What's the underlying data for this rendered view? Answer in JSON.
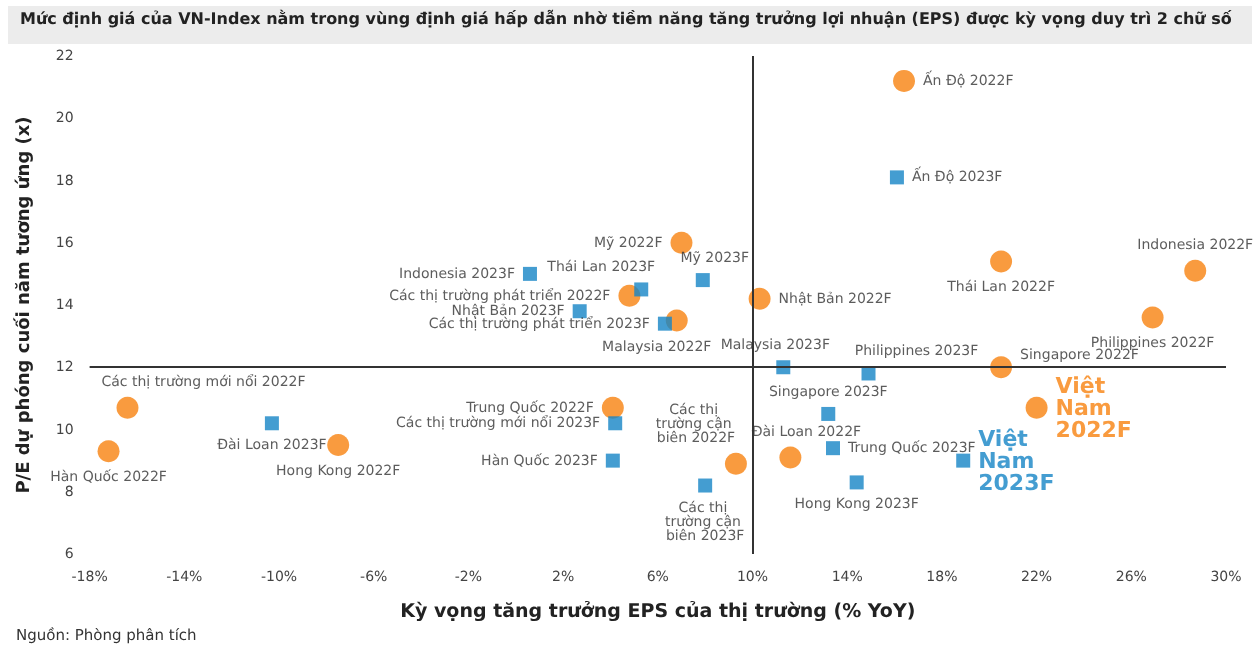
{
  "chart_data": {
    "type": "scatter",
    "title": "Mức định giá của VN-Index nằm trong vùng định giá hấp dẫn nhờ tiềm năng tăng trưởng lợi nhuận (EPS) được kỳ vọng duy trì 2 chữ số",
    "xlabel": "Kỳ vọng tăng trưởng EPS của thị trường (% YoY)",
    "ylabel": "P/E dự phóng cuối năm tương ứng (x)",
    "annotations": [
      "Nguồn: Phòng phân tích"
    ],
    "series": [
      {
        "color": "#f7820f",
        "marker": "circle",
        "x": [
          16.4,
          20.5,
          28.7,
          26.9,
          20.5,
          22.0,
          10.3,
          7.0,
          4.8,
          6.8,
          4.1,
          9.3,
          11.6,
          -16.4,
          -17.2,
          -7.5
        ],
        "values": [
          21.2,
          15.4,
          15.1,
          13.6,
          12.0,
          10.7,
          14.2,
          16.0,
          14.3,
          13.5,
          10.7,
          8.9,
          9.1,
          10.7,
          9.3,
          9.5
        ],
        "value_labels": [
          "Ấn Độ 2022F",
          "Thái Lan 2022F",
          "Indonesia 2022F",
          "Philippines 2022F",
          "Singapore 2022F",
          "Việt Nam 2022F",
          "Nhật Bản 2022F",
          "Mỹ 2022F",
          "Các thị trường phát triển 2022F",
          "Malaysia 2022F",
          "Trung Quốc 2022F",
          "Các thị trường cận biên 2022F",
          "Đài Loan 2022F",
          "Các thị trường mới nổi 2022F",
          "Hàn Quốc 2022F",
          "Hong Kong 2022F"
        ]
      },
      {
        "color": "#1585c6",
        "marker": "square",
        "x": [
          16.1,
          7.9,
          5.3,
          0.6,
          2.7,
          6.3,
          11.3,
          14.9,
          13.2,
          13.4,
          14.4,
          18.9,
          8.0,
          4.2,
          4.1,
          -10.3
        ],
        "values": [
          18.1,
          14.8,
          14.5,
          15.0,
          13.8,
          13.4,
          12.0,
          11.8,
          10.5,
          9.4,
          8.3,
          9.0,
          8.2,
          10.2,
          9.0,
          10.2
        ],
        "value_labels": [
          "Ấn Độ 2023F",
          "Mỹ 2023F",
          "Thái Lan 2023F",
          "Indonesia 2023F",
          "Nhật Bản 2023F",
          "Các thị trường phát triển 2023F",
          "Malaysia 2023F",
          "Philippines 2023F",
          "Singapore 2023F",
          "Trung Quốc 2023F",
          "Hong Kong 2023F",
          "Việt Nam 2023F",
          "Các thị trường cận biên 2023F",
          "Các thị trường mới nổi 2023F",
          "Hàn Quốc 2023F",
          "Đài Loan 2023F"
        ]
      }
    ],
    "xlim": [
      -18,
      30
    ],
    "xticks": [
      {
        "value": -18,
        "label": "-18%"
      },
      {
        "value": -14,
        "label": "-14%"
      },
      {
        "value": -10,
        "label": "-10%"
      },
      {
        "value": -6,
        "label": "-6%"
      },
      {
        "value": -2,
        "label": "-2%"
      },
      {
        "value": 2,
        "label": "2%"
      },
      {
        "value": 6,
        "label": "6%"
      },
      {
        "value": 10,
        "label": "10%"
      },
      {
        "value": 14,
        "label": "14%"
      },
      {
        "value": 18,
        "label": "18%"
      },
      {
        "value": 22,
        "label": "22%"
      },
      {
        "value": 26,
        "label": "26%"
      },
      {
        "value": 30,
        "label": "30%"
      }
    ],
    "ylim": [
      6,
      22
    ],
    "yticks": [
      6,
      8,
      10,
      12,
      14,
      16,
      18,
      20,
      22
    ],
    "ref_lines": [
      {
        "axis": "x",
        "value": 10,
        "color": "#333333"
      },
      {
        "axis": "y",
        "value": 12,
        "color": "#333333"
      }
    ],
    "grid": false
  }
}
